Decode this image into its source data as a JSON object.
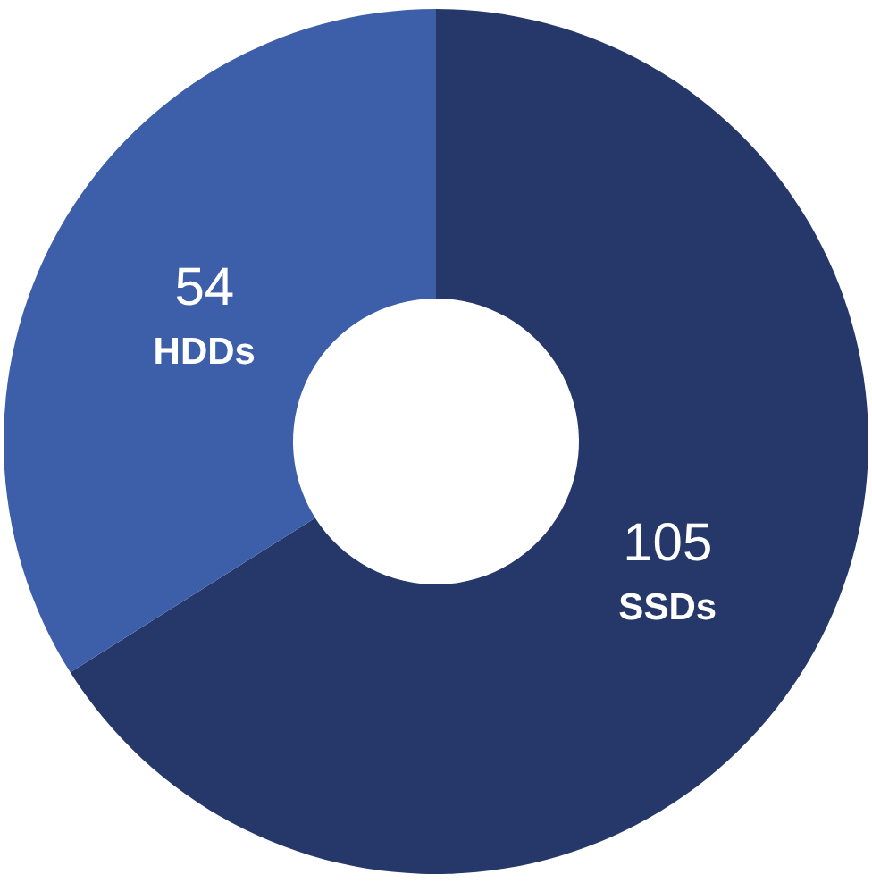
{
  "chart_data": {
    "type": "donut",
    "categories": [
      "SSDs",
      "HDDs"
    ],
    "values": [
      105,
      54
    ],
    "colors": [
      "#253869",
      "#3d5ea8"
    ],
    "data_labels": true,
    "legend": false
  }
}
